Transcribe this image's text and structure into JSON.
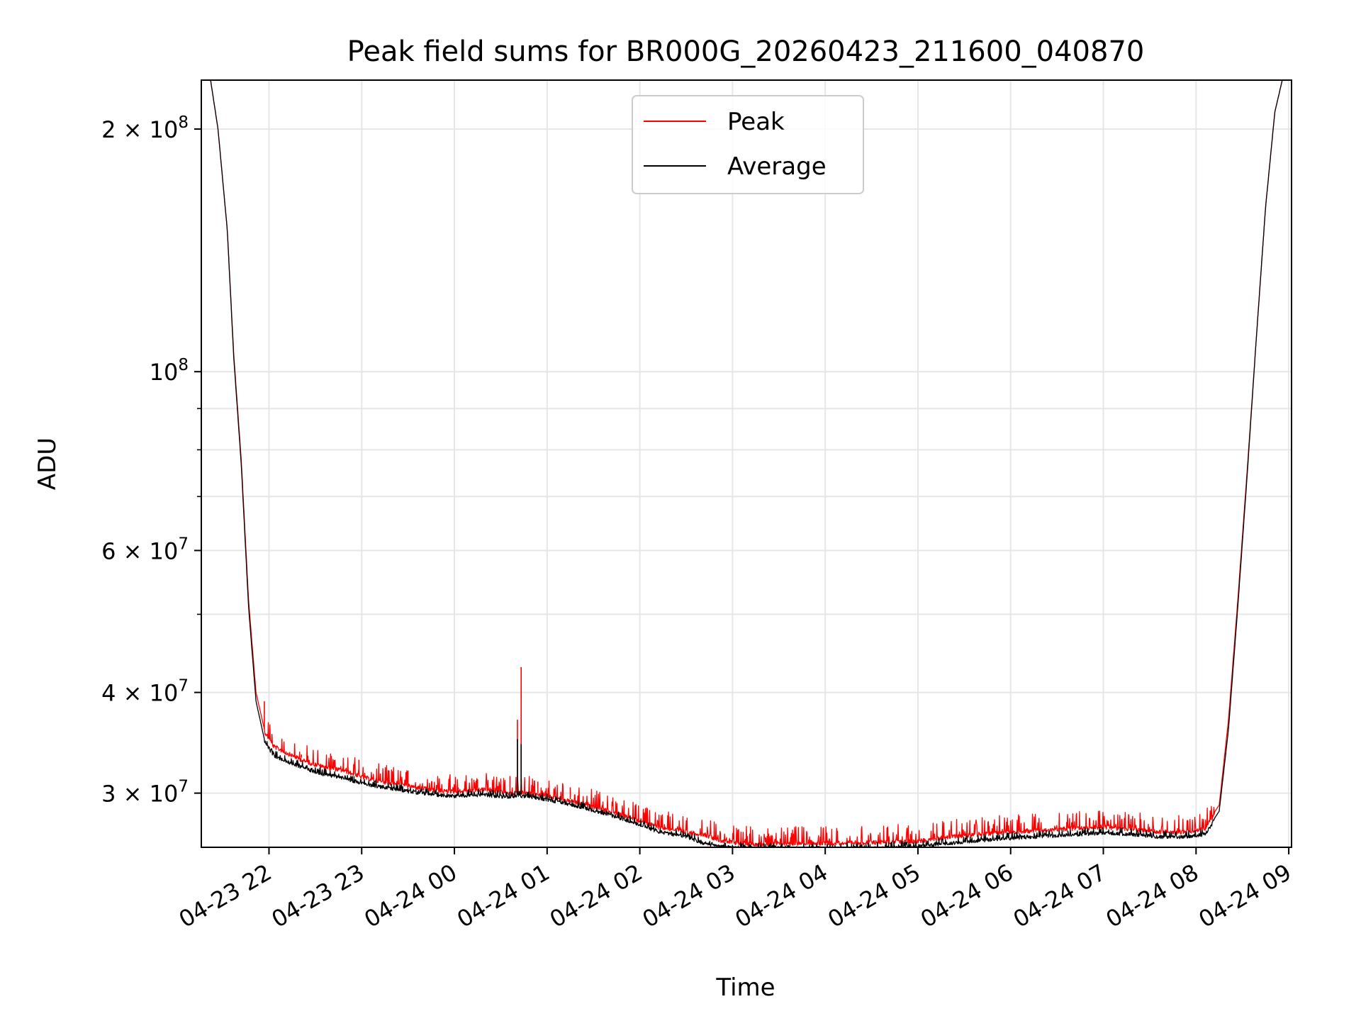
{
  "chart_data": {
    "type": "line",
    "title": "Peak field sums for BR000G_20260423_211600_040870",
    "xlabel": "Time",
    "ylabel": "ADU",
    "yscale": "log",
    "grid": true,
    "legend_position": "upper center",
    "x_unit": "hours since 2026-04-23 21:00",
    "xlim": [
      0.27,
      12.03
    ],
    "ylim": [
      25700000,
      230000000
    ],
    "x_ticks": [
      {
        "value": 1,
        "label": "04-23 22"
      },
      {
        "value": 2,
        "label": "04-23 23"
      },
      {
        "value": 3,
        "label": "04-24 00"
      },
      {
        "value": 4,
        "label": "04-24 01"
      },
      {
        "value": 5,
        "label": "04-24 02"
      },
      {
        "value": 6,
        "label": "04-24 03"
      },
      {
        "value": 7,
        "label": "04-24 04"
      },
      {
        "value": 8,
        "label": "04-24 05"
      },
      {
        "value": 9,
        "label": "04-24 06"
      },
      {
        "value": 10,
        "label": "04-24 07"
      },
      {
        "value": 11,
        "label": "04-24 08"
      },
      {
        "value": 12,
        "label": "04-24 09"
      }
    ],
    "y_major_ticks": [
      {
        "value": 30000000,
        "mantissa": "3",
        "exponent": "7"
      },
      {
        "value": 40000000,
        "mantissa": "4",
        "exponent": "7"
      },
      {
        "value": 60000000,
        "mantissa": "6",
        "exponent": "7"
      },
      {
        "value": 100000000,
        "mantissa": "",
        "exponent": "8"
      },
      {
        "value": 200000000,
        "mantissa": "2",
        "exponent": "8"
      }
    ],
    "y_minor_ticks": [
      50000000,
      70000000,
      80000000,
      90000000
    ],
    "tick_times_symbol": "×",
    "tick_base": "10",
    "series": [
      {
        "name": "Peak",
        "color": "#ff0000",
        "x": [
          0.37,
          0.45,
          0.55,
          0.62,
          0.7,
          0.78,
          0.86,
          0.95,
          1.05,
          1.2,
          1.4,
          1.6,
          1.8,
          2.0,
          2.2,
          2.5,
          2.8,
          3.0,
          3.3,
          3.6,
          3.75,
          4.0,
          4.3,
          4.6,
          4.9,
          5.2,
          5.5,
          5.7,
          5.85,
          6.0,
          6.2,
          6.5,
          7.0,
          7.5,
          8.0,
          8.3,
          8.6,
          9.0,
          9.5,
          10.0,
          10.3,
          10.6,
          10.9,
          11.1,
          11.25,
          11.35,
          11.45,
          11.55,
          11.65,
          11.75,
          11.85,
          11.93
        ],
        "values": [
          230000000,
          200000000,
          150000000,
          105000000,
          78000000,
          52000000,
          40000000,
          36000000,
          34500000,
          33800000,
          33000000,
          32500000,
          32200000,
          31600000,
          31200000,
          30800000,
          30400000,
          30300000,
          30500000,
          30100000,
          30200000,
          29900000,
          29400000,
          28800000,
          28100000,
          27400000,
          27000000,
          26800000,
          26400000,
          26200000,
          26100000,
          26100000,
          26150000,
          26200000,
          26300000,
          26600000,
          26800000,
          27000000,
          27200000,
          27400000,
          27200000,
          27000000,
          27000000,
          27300000,
          29000000,
          37000000,
          52000000,
          75000000,
          110000000,
          160000000,
          210000000,
          230000000
        ],
        "spikes": [
          {
            "x": 0.95,
            "y": 39000000
          },
          {
            "x": 1.35,
            "y": 33500000
          },
          {
            "x": 1.97,
            "y": 33000000
          },
          {
            "x": 2.5,
            "y": 32000000
          },
          {
            "x": 3.25,
            "y": 31200000
          },
          {
            "x": 3.6,
            "y": 31500000
          },
          {
            "x": 3.68,
            "y": 37000000
          },
          {
            "x": 3.72,
            "y": 43000000
          },
          {
            "x": 3.9,
            "y": 31000000
          },
          {
            "x": 4.25,
            "y": 30500000
          }
        ]
      },
      {
        "name": "Average",
        "color": "#000000",
        "x": [
          0.37,
          0.45,
          0.55,
          0.62,
          0.7,
          0.78,
          0.86,
          0.95,
          1.05,
          1.2,
          1.4,
          1.6,
          1.8,
          2.0,
          2.2,
          2.5,
          2.8,
          3.0,
          3.3,
          3.6,
          3.75,
          4.0,
          4.3,
          4.6,
          4.9,
          5.2,
          5.5,
          5.7,
          5.85,
          6.0,
          6.2,
          6.5,
          7.0,
          7.5,
          8.0,
          8.3,
          8.6,
          9.0,
          9.5,
          10.0,
          10.3,
          10.6,
          10.9,
          11.1,
          11.25,
          11.35,
          11.45,
          11.55,
          11.65,
          11.75,
          11.85,
          11.93
        ],
        "values": [
          230000000,
          200000000,
          150000000,
          104000000,
          77000000,
          51000000,
          39000000,
          35000000,
          33500000,
          33000000,
          32300000,
          31800000,
          31500000,
          31000000,
          30700000,
          30300000,
          30000000,
          29900000,
          30000000,
          29800000,
          29900000,
          29600000,
          29100000,
          28500000,
          27800000,
          27000000,
          26600000,
          26100000,
          25900000,
          25800000,
          25700000,
          25700000,
          25700000,
          25750000,
          25850000,
          26100000,
          26300000,
          26500000,
          26700000,
          26900000,
          26800000,
          26600000,
          26600000,
          26800000,
          28500000,
          36000000,
          51000000,
          74000000,
          110000000,
          160000000,
          210000000,
          230000000
        ],
        "spikes": [
          {
            "x": 3.68,
            "y": 35000000
          },
          {
            "x": 3.72,
            "y": 34500000
          }
        ]
      }
    ]
  }
}
